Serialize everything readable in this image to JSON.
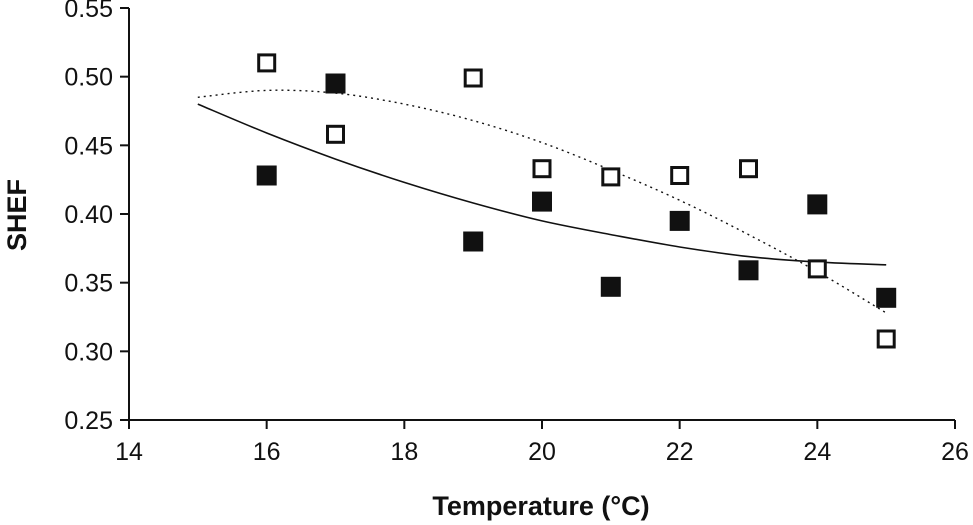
{
  "chart_data": {
    "type": "scatter",
    "title": "",
    "xlabel": "Temperature (°C)",
    "ylabel": "SHEF",
    "xlim": [
      14,
      26
    ],
    "ylim": [
      0.25,
      0.55
    ],
    "x_ticks": [
      "14",
      "16",
      "18",
      "20",
      "22",
      "24",
      "26"
    ],
    "y_ticks": [
      "0.25",
      "0.30",
      "0.35",
      "0.40",
      "0.45",
      "0.50",
      "0.55"
    ],
    "grid": false,
    "legend": "none",
    "series": [
      {
        "marker": "filled-square",
        "color": "#111111",
        "points": [
          {
            "x": 16,
            "y": 0.428
          },
          {
            "x": 17,
            "y": 0.495
          },
          {
            "x": 19,
            "y": 0.38
          },
          {
            "x": 20,
            "y": 0.409
          },
          {
            "x": 21,
            "y": 0.347
          },
          {
            "x": 22,
            "y": 0.395
          },
          {
            "x": 23,
            "y": 0.359
          },
          {
            "x": 24,
            "y": 0.407
          },
          {
            "x": 25,
            "y": 0.339
          }
        ],
        "trend": {
          "style": "solid",
          "x": [
            15,
            16,
            17,
            18,
            19,
            20,
            21,
            22,
            23,
            24,
            25
          ],
          "y": [
            0.48,
            0.459,
            0.44,
            0.423,
            0.408,
            0.395,
            0.385,
            0.376,
            0.369,
            0.365,
            0.363
          ]
        }
      },
      {
        "marker": "open-square",
        "color": "#111111",
        "points": [
          {
            "x": 16,
            "y": 0.51
          },
          {
            "x": 17,
            "y": 0.458
          },
          {
            "x": 19,
            "y": 0.499
          },
          {
            "x": 20,
            "y": 0.433
          },
          {
            "x": 21,
            "y": 0.427
          },
          {
            "x": 22,
            "y": 0.428
          },
          {
            "x": 23,
            "y": 0.433
          },
          {
            "x": 24,
            "y": 0.36
          },
          {
            "x": 25,
            "y": 0.309
          }
        ],
        "trend": {
          "style": "dotted",
          "x": [
            15,
            16,
            17,
            18,
            19,
            20,
            21,
            22,
            23,
            24,
            25
          ],
          "y": [
            0.485,
            0.49,
            0.488,
            0.48,
            0.468,
            0.452,
            0.432,
            0.41,
            0.385,
            0.358,
            0.328
          ]
        }
      }
    ]
  }
}
